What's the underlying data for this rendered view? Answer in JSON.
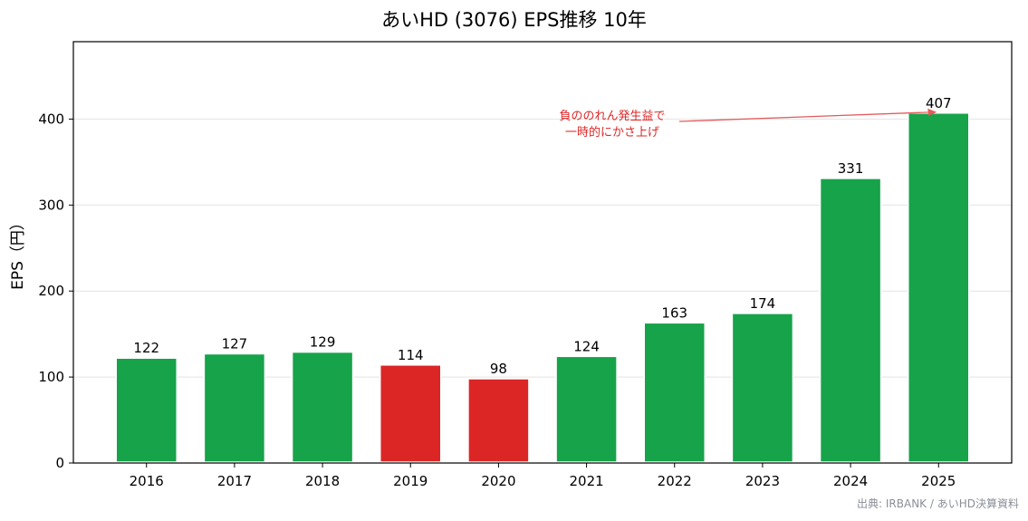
{
  "chart_data": {
    "type": "bar",
    "title": "あいHD (3076) EPS推移 10年",
    "xlabel": "",
    "ylabel": "EPS（円）",
    "categories": [
      "2016",
      "2017",
      "2018",
      "2019",
      "2020",
      "2021",
      "2022",
      "2023",
      "2024",
      "2025"
    ],
    "values": [
      122,
      127,
      129,
      114,
      98,
      124,
      163,
      174,
      331,
      407
    ],
    "bar_colors": [
      "#16a34a",
      "#16a34a",
      "#16a34a",
      "#dc2626",
      "#dc2626",
      "#16a34a",
      "#16a34a",
      "#16a34a",
      "#16a34a",
      "#16a34a"
    ],
    "ylim": [
      0,
      490
    ],
    "yticks": [
      0,
      100,
      200,
      300,
      400
    ],
    "grid": "horizontal",
    "annotation": {
      "lines": [
        "負ののれん発生益で",
        "一時的にかさ上げ"
      ],
      "target_category": "2025",
      "color": "#dc2626"
    },
    "source": "出典: IRBANK / あいHD決算資料"
  }
}
